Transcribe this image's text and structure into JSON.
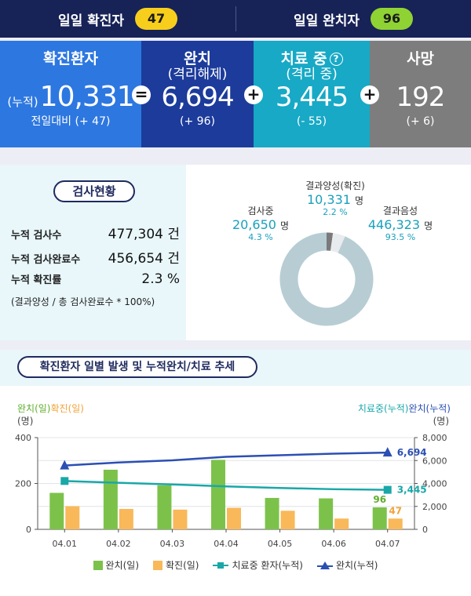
{
  "daily": {
    "confirmed_label": "일일 확진자",
    "confirmed_value": "47",
    "recovered_label": "일일 완치자",
    "recovered_value": "96"
  },
  "stats": {
    "total": {
      "label": "확진환자",
      "prefix": "(누적)",
      "value": "10,331",
      "delta": "전일대비 (+ 47)"
    },
    "recovered": {
      "label": "완치",
      "sub": "(격리해제)",
      "value": "6,694",
      "delta": "(+ 96)"
    },
    "treating": {
      "label": "치료 중",
      "sub": "(격리 중)",
      "value": "3,445",
      "delta": "(- 55)",
      "help": "?"
    },
    "deaths": {
      "label": "사망",
      "value": "192",
      "delta": "(+ 6)"
    },
    "ops": {
      "eq": "=",
      "plus": "+"
    }
  },
  "tests": {
    "title": "검사현황",
    "rows": [
      {
        "key": "누적 검사수",
        "value": "477,304 건"
      },
      {
        "key": "누적 검사완료수",
        "value": "456,654 건"
      },
      {
        "key": "누적 확진률",
        "value": "2.3 %"
      }
    ],
    "note": "(결과양성 / 총 검사완료수 * 100%)",
    "donut": [
      {
        "name": "결과양성(확진)",
        "value": "10,331",
        "unit": "명",
        "pct": "2.2 %",
        "share": 2.2,
        "color": "#7a7a7a"
      },
      {
        "name": "검사중",
        "value": "20,650",
        "unit": "명",
        "pct": "4.3 %",
        "share": 4.3,
        "color": "#e8ecee"
      },
      {
        "name": "결과음성",
        "value": "446,323",
        "unit": "명",
        "pct": "93.5 %",
        "share": 93.5,
        "color": "#b7cdd3"
      }
    ]
  },
  "trend": {
    "title": "확진환자 일별 발생 및 누적완치/치료 추세",
    "left_legend_a": "완치(일)",
    "left_legend_b": "확진(일)",
    "right_legend_a": "치료중(누적)",
    "right_legend_b": "완치(누적)",
    "unit": "(명)",
    "legend": {
      "a": "완치(일)",
      "b": "확진(일)",
      "c": "치료중 환자(누적)",
      "d": "완치(누적)"
    },
    "colors": {
      "recovered_daily": "#7cc24a",
      "confirmed_daily": "#f9b85a",
      "treating_cum": "#1aa7a8",
      "recovered_cum": "#2b4fb3"
    }
  },
  "chart_data": {
    "type": "bar",
    "categories": [
      "04.01",
      "04.02",
      "04.03",
      "04.04",
      "04.05",
      "04.06",
      "04.07"
    ],
    "series": [
      {
        "name": "완치(일)",
        "type": "bar",
        "axis": "left",
        "values": [
          159,
          260,
          192,
          303,
          137,
          135,
          96
        ]
      },
      {
        "name": "확진(일)",
        "type": "bar",
        "axis": "left",
        "values": [
          101,
          89,
          86,
          94,
          81,
          47,
          47
        ]
      },
      {
        "name": "치료중 환자(누적)",
        "type": "line",
        "axis": "right",
        "values": [
          4216,
          4057,
          3917,
          3740,
          3607,
          3500,
          3445
        ]
      },
      {
        "name": "완치(누적)",
        "type": "line",
        "axis": "right",
        "values": [
          5567,
          5828,
          6021,
          6325,
          6463,
          6598,
          6694
        ]
      }
    ],
    "ylim_left": [
      0,
      400
    ],
    "yticks_left": [
      0,
      200,
      400
    ],
    "ylim_right": [
      0,
      8000
    ],
    "yticks_right": [
      0,
      2000,
      4000,
      6000,
      8000
    ],
    "ytick_labels_right": [
      "0",
      "2,000",
      "4,000",
      "6,000",
      "8,000"
    ],
    "labels": {
      "last_recovered_daily": "96",
      "last_confirmed_daily": "47",
      "last_treating": "3,445",
      "last_recovered_cum": "6,694"
    },
    "grid": true
  }
}
